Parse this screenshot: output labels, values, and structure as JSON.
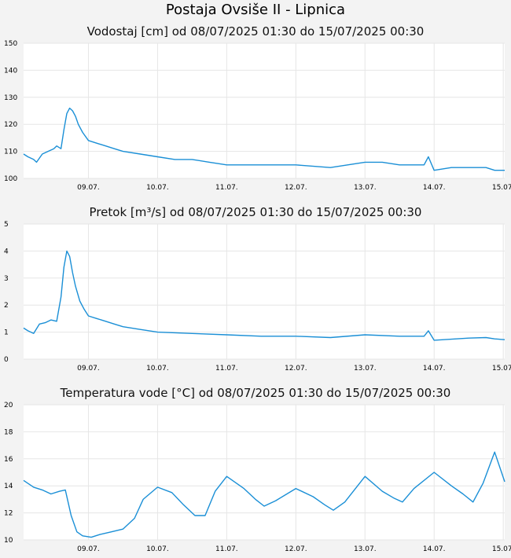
{
  "page": {
    "title": "Postaja Ovsiše II - Lipnica"
  },
  "colors": {
    "line": "#1a8fd6",
    "plot_background": "#ffffff",
    "grid": "#e6e6e6",
    "page_background": "#f3f3f3"
  },
  "chart_data": [
    {
      "type": "line",
      "title": "Vodostaj [cm] od 08/07/2025 01:30 do 15/07/2025 00:30",
      "x_range": [
        "2025-07-08T01:30",
        "2025-07-15T00:30"
      ],
      "ylim": [
        100,
        150
      ],
      "y_ticks": [
        "100",
        "110",
        "120",
        "130",
        "140",
        "150"
      ],
      "x_ticks": [
        {
          "label": "09.07.",
          "x": "2025-07-09T00:00"
        },
        {
          "label": "10.07.",
          "x": "2025-07-10T00:00"
        },
        {
          "label": "11.07.",
          "x": "2025-07-11T00:00"
        },
        {
          "label": "12.07.",
          "x": "2025-07-12T00:00"
        },
        {
          "label": "13.07.",
          "x": "2025-07-13T00:00"
        },
        {
          "label": "14.07.",
          "x": "2025-07-14T00:00"
        },
        {
          "label": "15.07.",
          "x": "2025-07-15T00:00"
        }
      ],
      "grid": true,
      "series": [
        {
          "x": [
            "2025-07-08T01:30",
            "2025-07-08T03:00",
            "2025-07-08T05:00",
            "2025-07-08T06:00",
            "2025-07-08T08:00",
            "2025-07-08T10:00",
            "2025-07-08T12:00",
            "2025-07-08T13:00",
            "2025-07-08T14:30",
            "2025-07-08T15:30",
            "2025-07-08T16:30",
            "2025-07-08T17:30",
            "2025-07-08T18:30",
            "2025-07-08T19:30",
            "2025-07-08T20:30",
            "2025-07-08T22:00",
            "2025-07-09T00:00",
            "2025-07-09T03:00",
            "2025-07-09T06:00",
            "2025-07-09T09:00",
            "2025-07-09T12:00",
            "2025-07-09T18:00",
            "2025-07-10T00:00",
            "2025-07-10T06:00",
            "2025-07-10T12:00",
            "2025-07-10T18:00",
            "2025-07-11T00:00",
            "2025-07-11T12:00",
            "2025-07-12T00:00",
            "2025-07-12T12:00",
            "2025-07-13T00:00",
            "2025-07-13T06:00",
            "2025-07-13T12:00",
            "2025-07-13T18:00",
            "2025-07-13T20:30",
            "2025-07-13T22:00",
            "2025-07-14T00:00",
            "2025-07-14T06:00",
            "2025-07-14T12:00",
            "2025-07-14T18:00",
            "2025-07-14T21:00",
            "2025-07-15T00:30"
          ],
          "y": [
            109,
            108,
            107,
            106,
            109,
            110,
            111,
            112,
            111,
            118,
            124,
            126,
            125,
            123,
            120,
            117,
            114,
            113,
            112,
            111,
            110,
            109,
            108,
            107,
            107,
            106,
            105,
            105,
            105,
            104,
            106,
            106,
            105,
            105,
            105,
            108,
            103,
            104,
            104,
            104,
            103,
            103
          ]
        }
      ]
    },
    {
      "type": "line",
      "title": "Pretok [m³/s] od 08/07/2025 01:30 do 15/07/2025 00:30",
      "x_range": [
        "2025-07-08T01:30",
        "2025-07-15T00:30"
      ],
      "ylim": [
        0,
        5
      ],
      "y_ticks": [
        "0",
        "1",
        "2",
        "3",
        "4",
        "5"
      ],
      "x_ticks": [
        {
          "label": "09.07.",
          "x": "2025-07-09T00:00"
        },
        {
          "label": "10.07.",
          "x": "2025-07-10T00:00"
        },
        {
          "label": "11.07.",
          "x": "2025-07-11T00:00"
        },
        {
          "label": "12.07.",
          "x": "2025-07-12T00:00"
        },
        {
          "label": "13.07.",
          "x": "2025-07-13T00:00"
        },
        {
          "label": "14.07.",
          "x": "2025-07-14T00:00"
        },
        {
          "label": "15.07.",
          "x": "2025-07-15T00:00"
        }
      ],
      "grid": true,
      "series": [
        {
          "x": [
            "2025-07-08T01:30",
            "2025-07-08T03:00",
            "2025-07-08T05:00",
            "2025-07-08T07:00",
            "2025-07-08T09:00",
            "2025-07-08T11:00",
            "2025-07-08T13:00",
            "2025-07-08T14:30",
            "2025-07-08T15:30",
            "2025-07-08T16:30",
            "2025-07-08T17:30",
            "2025-07-08T18:30",
            "2025-07-08T19:30",
            "2025-07-08T21:00",
            "2025-07-08T22:30",
            "2025-07-09T00:00",
            "2025-07-09T03:00",
            "2025-07-09T06:00",
            "2025-07-09T09:00",
            "2025-07-09T12:00",
            "2025-07-09T18:00",
            "2025-07-10T00:00",
            "2025-07-10T12:00",
            "2025-07-11T00:00",
            "2025-07-11T12:00",
            "2025-07-12T00:00",
            "2025-07-12T12:00",
            "2025-07-13T00:00",
            "2025-07-13T12:00",
            "2025-07-13T20:30",
            "2025-07-13T22:00",
            "2025-07-14T00:00",
            "2025-07-14T12:00",
            "2025-07-14T18:00",
            "2025-07-14T21:00",
            "2025-07-15T00:30"
          ],
          "y": [
            1.15,
            1.05,
            0.95,
            1.3,
            1.35,
            1.45,
            1.4,
            2.3,
            3.4,
            4.0,
            3.8,
            3.2,
            2.7,
            2.15,
            1.85,
            1.6,
            1.5,
            1.4,
            1.3,
            1.2,
            1.1,
            1.0,
            0.95,
            0.9,
            0.85,
            0.85,
            0.8,
            0.9,
            0.85,
            0.85,
            1.05,
            0.7,
            0.78,
            0.8,
            0.75,
            0.72
          ]
        }
      ]
    },
    {
      "type": "line",
      "title": "Temperatura vode [°C] od 08/07/2025 01:30 do 15/07/2025 00:30",
      "x_range": [
        "2025-07-08T01:30",
        "2025-07-15T00:30"
      ],
      "ylim": [
        10,
        20
      ],
      "y_ticks": [
        "10",
        "12",
        "14",
        "16",
        "18",
        "20"
      ],
      "x_ticks": [
        {
          "label": "09.07.",
          "x": "2025-07-09T00:00"
        },
        {
          "label": "10.07.",
          "x": "2025-07-10T00:00"
        },
        {
          "label": "11.07.",
          "x": "2025-07-11T00:00"
        },
        {
          "label": "12.07.",
          "x": "2025-07-12T00:00"
        },
        {
          "label": "13.07.",
          "x": "2025-07-13T00:00"
        },
        {
          "label": "14.07.",
          "x": "2025-07-14T00:00"
        },
        {
          "label": "15.07.",
          "x": "2025-07-15T00:00"
        }
      ],
      "grid": true,
      "series": [
        {
          "x": [
            "2025-07-08T01:30",
            "2025-07-08T05:00",
            "2025-07-08T08:00",
            "2025-07-08T11:00",
            "2025-07-08T14:00",
            "2025-07-08T16:00",
            "2025-07-08T18:00",
            "2025-07-08T20:00",
            "2025-07-08T22:00",
            "2025-07-09T01:00",
            "2025-07-09T04:00",
            "2025-07-09T08:00",
            "2025-07-09T12:00",
            "2025-07-09T16:00",
            "2025-07-09T19:00",
            "2025-07-10T00:00",
            "2025-07-10T05:00",
            "2025-07-10T09:00",
            "2025-07-10T13:00",
            "2025-07-10T16:30",
            "2025-07-10T20:00",
            "2025-07-11T00:00",
            "2025-07-11T06:00",
            "2025-07-11T10:00",
            "2025-07-11T13:00",
            "2025-07-11T17:00",
            "2025-07-12T00:00",
            "2025-07-12T06:00",
            "2025-07-12T10:00",
            "2025-07-12T13:00",
            "2025-07-12T17:00",
            "2025-07-13T00:00",
            "2025-07-13T06:00",
            "2025-07-13T10:00",
            "2025-07-13T13:00",
            "2025-07-13T17:00",
            "2025-07-14T00:00",
            "2025-07-14T06:00",
            "2025-07-14T10:00",
            "2025-07-14T13:30",
            "2025-07-14T17:00",
            "2025-07-14T21:00",
            "2025-07-15T00:30"
          ],
          "y": [
            14.4,
            13.9,
            13.7,
            13.4,
            13.6,
            13.7,
            11.8,
            10.6,
            10.3,
            10.2,
            10.4,
            10.6,
            10.8,
            11.6,
            13.0,
            13.9,
            13.5,
            12.6,
            11.8,
            11.8,
            13.6,
            14.7,
            13.8,
            13.0,
            12.5,
            12.9,
            13.8,
            13.2,
            12.6,
            12.2,
            12.8,
            14.7,
            13.6,
            13.1,
            12.8,
            13.8,
            15.0,
            14.0,
            13.4,
            12.8,
            14.2,
            16.5,
            14.3
          ]
        }
      ]
    }
  ]
}
